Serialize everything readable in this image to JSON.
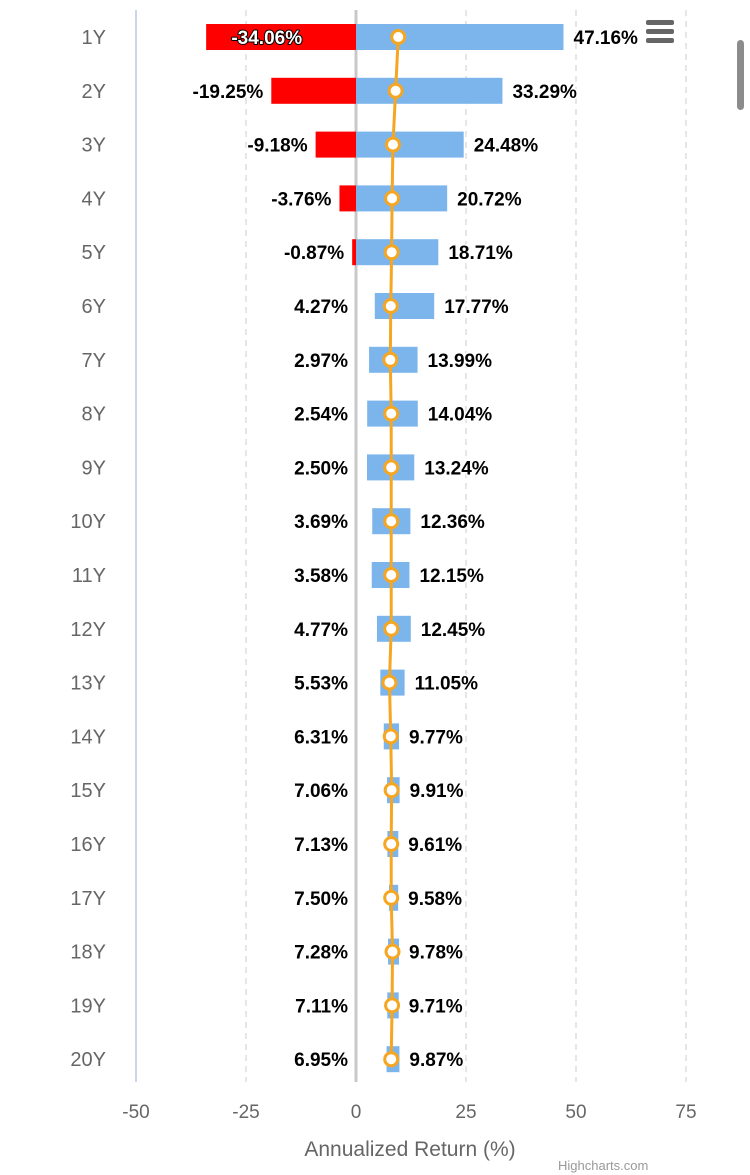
{
  "chart_data": {
    "type": "bar",
    "orientation": "horizontal",
    "categories": [
      "1Y",
      "2Y",
      "3Y",
      "4Y",
      "5Y",
      "6Y",
      "7Y",
      "8Y",
      "9Y",
      "10Y",
      "11Y",
      "12Y",
      "13Y",
      "14Y",
      "15Y",
      "16Y",
      "17Y",
      "18Y",
      "19Y",
      "20Y"
    ],
    "series": [
      {
        "kind": "range",
        "low": [
          -34.06,
          -19.25,
          -9.18,
          -3.76,
          -0.87,
          4.27,
          2.97,
          2.54,
          2.5,
          3.69,
          3.58,
          4.77,
          5.53,
          6.31,
          7.06,
          7.13,
          7.5,
          7.28,
          7.11,
          6.95
        ],
        "high": [
          47.16,
          33.29,
          24.48,
          20.72,
          18.71,
          17.77,
          13.99,
          14.04,
          13.24,
          12.36,
          12.15,
          12.45,
          11.05,
          9.77,
          9.91,
          9.61,
          9.58,
          9.78,
          9.71,
          9.87
        ],
        "low_labels": [
          "-34.06%",
          "-19.25%",
          "-9.18%",
          "-3.76%",
          "-0.87%",
          "4.27%",
          "2.97%",
          "2.54%",
          "2.50%",
          "3.69%",
          "3.58%",
          "4.77%",
          "5.53%",
          "6.31%",
          "7.06%",
          "7.13%",
          "7.50%",
          "7.28%",
          "7.11%",
          "6.95%"
        ],
        "high_labels": [
          "47.16%",
          "33.29%",
          "24.48%",
          "20.72%",
          "18.71%",
          "17.77%",
          "13.99%",
          "14.04%",
          "13.24%",
          "12.36%",
          "12.15%",
          "12.45%",
          "11.05%",
          "9.77%",
          "9.91%",
          "9.61%",
          "9.58%",
          "9.78%",
          "9.71%",
          "9.87%"
        ],
        "positive_color": "#7cb5ec",
        "negative_color": "#ff0000"
      },
      {
        "kind": "line",
        "values": [
          9.6,
          9.0,
          8.4,
          8.2,
          8.1,
          7.9,
          7.8,
          8.0,
          8.0,
          8.0,
          8.0,
          8.0,
          7.6,
          7.9,
          8.1,
          8.0,
          8.0,
          8.3,
          8.2,
          8.0
        ],
        "color": "#f5a623"
      }
    ],
    "xlabel": "Annualized Return (%)",
    "xlim": [
      -50,
      75
    ],
    "xticks": [
      -50,
      -25,
      0,
      25,
      50,
      75
    ],
    "grid": true
  },
  "credits": "Highcharts.com"
}
